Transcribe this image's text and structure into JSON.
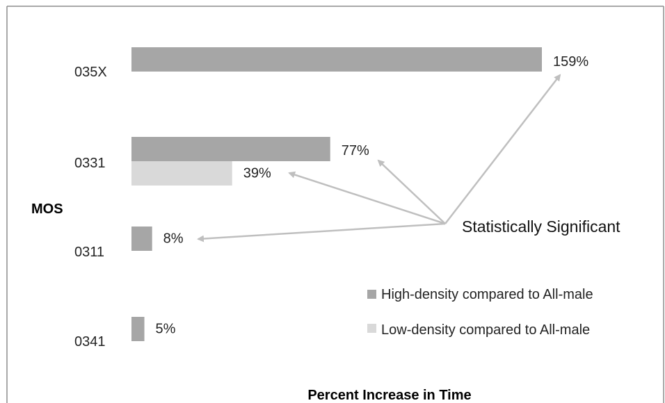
{
  "chart_data": {
    "type": "bar",
    "orientation": "horizontal",
    "categories": [
      "035X",
      "0331",
      "0311",
      "0341"
    ],
    "series": [
      {
        "name": "High-density compared to All-male",
        "color": "#a6a6a6",
        "values": [
          159,
          77,
          8,
          5
        ]
      },
      {
        "name": "Low-density compared to All-male",
        "color": "#d9d9d9",
        "values": [
          null,
          39,
          null,
          null
        ]
      }
    ],
    "data_labels": {
      "035X": [
        "159%"
      ],
      "0331": [
        "77%",
        "39%"
      ],
      "0311": [
        "8%"
      ],
      "0341": [
        "5%"
      ]
    },
    "ylabel": "MOS",
    "xlabel": "Percent Increase in Time",
    "xlim": [
      0,
      160
    ],
    "grid": false,
    "legend_position": "lower-right",
    "annotation": {
      "text": "Statistically Significant",
      "arrow_color": "#bfbfbf",
      "targets": [
        "159%",
        "77%",
        "39%",
        "8%"
      ]
    }
  }
}
